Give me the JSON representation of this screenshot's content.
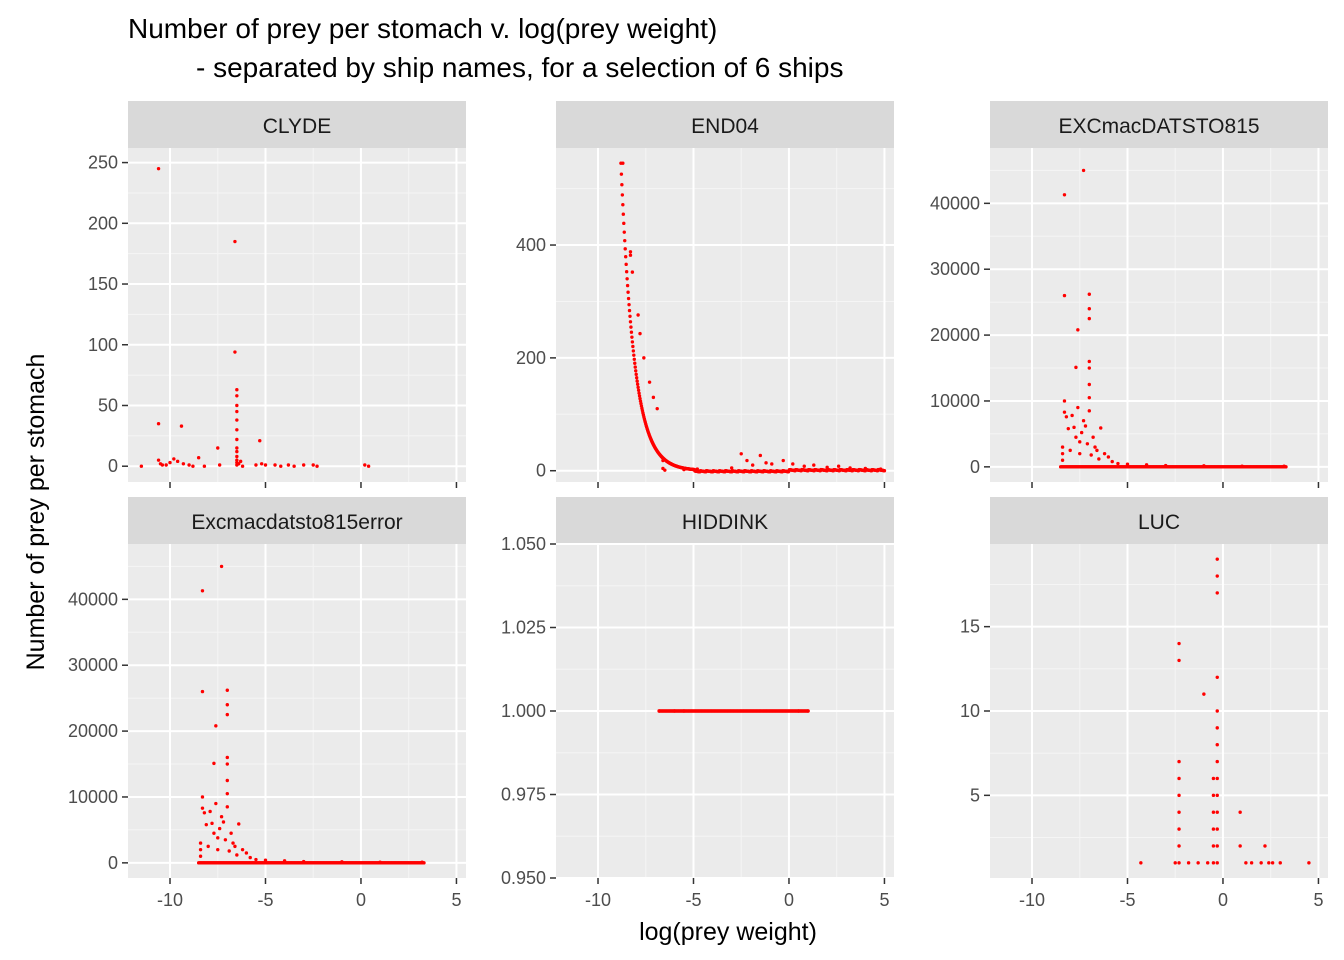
{
  "chart_data": {
    "type": "scatter",
    "title": "Number of prey per stomach v. log(prey weight)",
    "subtitle": "- separated by ship names, for a selection of 6 ships",
    "xlabel": "log(prey weight)",
    "ylabel": "Number of prey per stomach",
    "xlim": [
      -12.2,
      5.5
    ],
    "x_ticks": [
      -10,
      -5,
      0,
      5
    ],
    "x_tick_labels": [
      "-10",
      "-5",
      "0",
      "5"
    ],
    "point_color": "#ff0000",
    "panel_bg": "#ebebeb",
    "strip_bg": "#d9d9d9",
    "grid": true,
    "facet_scales": "free_y",
    "panels": [
      {
        "name": "CLYDE",
        "ylim": [
          -13,
          262
        ],
        "y_ticks": [
          0,
          50,
          100,
          150,
          200,
          250
        ],
        "y_tick_labels": [
          "0",
          "50",
          "100",
          "150",
          "200",
          "250"
        ],
        "points": [
          [
            -10.6,
            245
          ],
          [
            -10.6,
            35
          ],
          [
            -10.6,
            5
          ],
          [
            -10.5,
            2
          ],
          [
            -10.4,
            1
          ],
          [
            -11.5,
            0
          ],
          [
            -10.2,
            1
          ],
          [
            -10.0,
            3
          ],
          [
            -9.8,
            6
          ],
          [
            -9.6,
            4
          ],
          [
            -9.4,
            33
          ],
          [
            -9.3,
            2
          ],
          [
            -9.0,
            1
          ],
          [
            -8.8,
            0
          ],
          [
            -8.5,
            7
          ],
          [
            -8.2,
            0
          ],
          [
            -7.5,
            15
          ],
          [
            -7.4,
            1
          ],
          [
            -6.6,
            185
          ],
          [
            -6.6,
            94
          ],
          [
            -6.5,
            63
          ],
          [
            -6.5,
            58
          ],
          [
            -6.5,
            50
          ],
          [
            -6.5,
            45
          ],
          [
            -6.5,
            38
          ],
          [
            -6.5,
            30
          ],
          [
            -6.5,
            22
          ],
          [
            -6.5,
            15
          ],
          [
            -6.5,
            12
          ],
          [
            -6.5,
            8
          ],
          [
            -6.5,
            5
          ],
          [
            -6.5,
            3
          ],
          [
            -6.5,
            1
          ],
          [
            -6.4,
            2
          ],
          [
            -6.3,
            4
          ],
          [
            -6.2,
            0
          ],
          [
            -5.5,
            1
          ],
          [
            -5.3,
            21
          ],
          [
            -5.2,
            2
          ],
          [
            -5.0,
            1
          ],
          [
            -4.5,
            1
          ],
          [
            -4.2,
            0
          ],
          [
            -3.8,
            1
          ],
          [
            -3.5,
            0
          ],
          [
            -3.0,
            1
          ],
          [
            -2.5,
            1
          ],
          [
            -2.3,
            0
          ],
          [
            0.2,
            1
          ],
          [
            0.4,
            0
          ]
        ]
      },
      {
        "name": "END04",
        "ylim": [
          -20,
          572
        ],
        "y_ticks": [
          0,
          200,
          400
        ],
        "y_tick_labels": [
          "0",
          "200",
          "400"
        ],
        "curve": {
          "x_start": -8.8,
          "x_end": 5.0,
          "y_start": 545,
          "decay": 1.45,
          "jitter": 2
        },
        "points": [
          [
            -8.7,
            545
          ],
          [
            -8.3,
            388
          ],
          [
            -8.3,
            382
          ],
          [
            -8.2,
            352
          ],
          [
            -7.9,
            276
          ],
          [
            -7.8,
            243
          ],
          [
            -7.6,
            200
          ],
          [
            -7.3,
            157
          ],
          [
            -7.1,
            130
          ],
          [
            -6.9,
            110
          ],
          [
            -6.6,
            18
          ],
          [
            -6.6,
            4
          ],
          [
            -6.5,
            1
          ],
          [
            -5.5,
            2
          ],
          [
            -4.8,
            3
          ],
          [
            -3.0,
            5
          ],
          [
            -2.5,
            30
          ],
          [
            -2.2,
            18
          ],
          [
            -1.9,
            10
          ],
          [
            -1.5,
            27
          ],
          [
            -1.2,
            14
          ],
          [
            -0.9,
            12
          ],
          [
            -0.3,
            18
          ],
          [
            0.2,
            12
          ],
          [
            0.8,
            8
          ],
          [
            1.3,
            10
          ],
          [
            2.0,
            6
          ],
          [
            2.6,
            8
          ],
          [
            3.2,
            5
          ],
          [
            4.0,
            4
          ],
          [
            4.8,
            3
          ]
        ]
      },
      {
        "name": "EXCmacDATSTO815",
        "ylim": [
          -2300,
          48400
        ],
        "y_ticks": [
          0,
          10000,
          20000,
          30000,
          40000
        ],
        "y_tick_labels": [
          "0",
          "10000",
          "20000",
          "30000",
          "40000"
        ],
        "baseline": {
          "x_start": -8.5,
          "x_end": 3.3,
          "y": 0
        },
        "points": [
          [
            -7.3,
            45000
          ],
          [
            -8.3,
            41300
          ],
          [
            -8.3,
            26000
          ],
          [
            -7.0,
            26200
          ],
          [
            -7.0,
            24000
          ],
          [
            -7.0,
            22500
          ],
          [
            -7.6,
            20800
          ],
          [
            -7.7,
            15100
          ],
          [
            -7.0,
            16000
          ],
          [
            -7.0,
            15000
          ],
          [
            -7.0,
            12500
          ],
          [
            -7.0,
            10500
          ],
          [
            -7.0,
            8500
          ],
          [
            -8.3,
            10000
          ],
          [
            -8.3,
            8300
          ],
          [
            -8.2,
            7600
          ],
          [
            -8.1,
            5800
          ],
          [
            -7.9,
            7800
          ],
          [
            -7.8,
            6000
          ],
          [
            -7.7,
            4500
          ],
          [
            -7.6,
            9000
          ],
          [
            -7.5,
            3800
          ],
          [
            -7.4,
            5200
          ],
          [
            -7.3,
            7000
          ],
          [
            -7.2,
            6200
          ],
          [
            -6.8,
            4500
          ],
          [
            -6.7,
            3000
          ],
          [
            -6.6,
            2500
          ],
          [
            -6.4,
            5900
          ],
          [
            -6.2,
            2000
          ],
          [
            -6.0,
            1500
          ],
          [
            -5.5,
            500
          ],
          [
            -8.4,
            3000
          ],
          [
            -8.4,
            2000
          ],
          [
            -8.4,
            1000
          ],
          [
            -8.0,
            2500
          ],
          [
            -7.5,
            2000
          ],
          [
            -7.1,
            3500
          ],
          [
            -6.9,
            1800
          ],
          [
            -6.5,
            1200
          ],
          [
            -5.8,
            800
          ],
          [
            -5.0,
            400
          ],
          [
            -4.0,
            300
          ],
          [
            -3.0,
            200
          ],
          [
            -1.0,
            150
          ],
          [
            1.0,
            100
          ],
          [
            3.2,
            100
          ]
        ]
      },
      {
        "name": "Excmacdatsto815error",
        "ylim": [
          -2300,
          48400
        ],
        "y_ticks": [
          0,
          10000,
          20000,
          30000,
          40000
        ],
        "y_tick_labels": [
          "0",
          "10000",
          "20000",
          "30000",
          "40000"
        ],
        "baseline": {
          "x_start": -8.5,
          "x_end": 3.3,
          "y": 0
        },
        "points": [
          [
            -7.3,
            45000
          ],
          [
            -8.3,
            41300
          ],
          [
            -8.3,
            26000
          ],
          [
            -7.0,
            26200
          ],
          [
            -7.0,
            24000
          ],
          [
            -7.0,
            22500
          ],
          [
            -7.6,
            20800
          ],
          [
            -7.7,
            15100
          ],
          [
            -7.0,
            16000
          ],
          [
            -7.0,
            15000
          ],
          [
            -7.0,
            12500
          ],
          [
            -7.0,
            10500
          ],
          [
            -7.0,
            8500
          ],
          [
            -8.3,
            10000
          ],
          [
            -8.3,
            8300
          ],
          [
            -8.2,
            7600
          ],
          [
            -8.1,
            5800
          ],
          [
            -7.9,
            7800
          ],
          [
            -7.8,
            6000
          ],
          [
            -7.7,
            4500
          ],
          [
            -7.6,
            9000
          ],
          [
            -7.5,
            3800
          ],
          [
            -7.4,
            5200
          ],
          [
            -7.3,
            7000
          ],
          [
            -7.2,
            6200
          ],
          [
            -6.8,
            4500
          ],
          [
            -6.7,
            3000
          ],
          [
            -6.6,
            2500
          ],
          [
            -6.4,
            5900
          ],
          [
            -6.2,
            2000
          ],
          [
            -6.0,
            1500
          ],
          [
            -5.5,
            500
          ],
          [
            -8.4,
            3000
          ],
          [
            -8.4,
            2000
          ],
          [
            -8.4,
            1000
          ],
          [
            -8.0,
            2500
          ],
          [
            -7.5,
            2000
          ],
          [
            -7.1,
            3500
          ],
          [
            -6.9,
            1800
          ],
          [
            -6.5,
            1200
          ],
          [
            -5.8,
            800
          ],
          [
            -5.0,
            400
          ],
          [
            -4.0,
            300
          ],
          [
            -3.0,
            200
          ],
          [
            -1.0,
            150
          ],
          [
            1.0,
            100
          ],
          [
            3.2,
            100
          ]
        ]
      },
      {
        "name": "HIDDINK",
        "ylim": [
          0.95,
          1.05
        ],
        "y_ticks": [
          0.95,
          0.975,
          1.0,
          1.025,
          1.05
        ],
        "y_tick_labels": [
          "0.950",
          "0.975",
          "1.000",
          "1.025",
          "1.050"
        ],
        "baseline": {
          "x_start": -6.8,
          "x_end": 1.0,
          "y": 1.0
        },
        "points": [
          [
            -6.8,
            1.0
          ],
          [
            -6.0,
            1.0
          ],
          [
            -5.5,
            1.0
          ],
          [
            0.5,
            1.0
          ],
          [
            1.0,
            1.0
          ]
        ]
      },
      {
        "name": "LUC",
        "ylim": [
          0.1,
          19.9
        ],
        "y_ticks": [
          5,
          10,
          15
        ],
        "y_tick_labels": [
          "5",
          "10",
          "15"
        ],
        "points": [
          [
            -4.3,
            1
          ],
          [
            -2.5,
            1
          ],
          [
            -2.3,
            14
          ],
          [
            -2.3,
            13
          ],
          [
            -2.3,
            7
          ],
          [
            -2.3,
            6
          ],
          [
            -2.3,
            5
          ],
          [
            -2.3,
            4
          ],
          [
            -2.3,
            3
          ],
          [
            -2.3,
            2
          ],
          [
            -2.3,
            1
          ],
          [
            -1.8,
            1
          ],
          [
            -1.3,
            1
          ],
          [
            -1.0,
            11
          ],
          [
            -0.8,
            1
          ],
          [
            -0.5,
            6
          ],
          [
            -0.5,
            5
          ],
          [
            -0.5,
            4
          ],
          [
            -0.5,
            3
          ],
          [
            -0.5,
            2
          ],
          [
            -0.5,
            1
          ],
          [
            -0.3,
            19
          ],
          [
            -0.3,
            18
          ],
          [
            -0.3,
            17
          ],
          [
            -0.3,
            12
          ],
          [
            -0.3,
            10
          ],
          [
            -0.3,
            9
          ],
          [
            -0.3,
            8
          ],
          [
            -0.3,
            7
          ],
          [
            -0.3,
            6
          ],
          [
            -0.3,
            5
          ],
          [
            -0.3,
            4
          ],
          [
            -0.3,
            3
          ],
          [
            -0.3,
            2
          ],
          [
            -0.3,
            1
          ],
          [
            0.9,
            4
          ],
          [
            0.9,
            2
          ],
          [
            1.2,
            1
          ],
          [
            1.5,
            1
          ],
          [
            2.0,
            1
          ],
          [
            2.2,
            2
          ],
          [
            2.4,
            1
          ],
          [
            2.6,
            1
          ],
          [
            3.0,
            1
          ],
          [
            4.5,
            1
          ]
        ]
      }
    ]
  }
}
